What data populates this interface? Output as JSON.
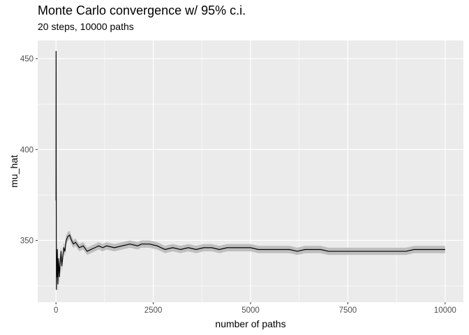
{
  "chart_data": {
    "type": "line",
    "title": "Monte Carlo convergence w/ 95% c.i.",
    "subtitle": "20 steps, 10000 paths",
    "xlabel": "number of paths",
    "ylabel": "mu_hat",
    "xlim": [
      -470,
      10470
    ],
    "ylim": [
      316,
      460
    ],
    "x_ticks": [
      0,
      2500,
      5000,
      7500,
      10000
    ],
    "x_tick_labels": [
      "0",
      "2500",
      "5000",
      "7500",
      "10000"
    ],
    "y_ticks": [
      350,
      400,
      450
    ],
    "y_tick_labels": [
      "350",
      "400",
      "450"
    ],
    "grid": true,
    "colors": {
      "panel": "#ebebeb",
      "grid_major": "#ffffff",
      "line": "#000000",
      "ribbon": "#bebebe"
    },
    "series": [
      {
        "x": [
          1,
          3,
          5,
          8,
          12,
          18,
          25,
          35,
          50,
          70,
          90,
          110,
          130,
          150,
          170,
          200,
          230,
          260,
          300,
          350,
          400,
          450,
          500,
          600,
          700,
          800,
          900,
          1000,
          1100,
          1200,
          1300,
          1500,
          1700,
          1900,
          2100,
          2200,
          2400,
          2600,
          2800,
          3000,
          3200,
          3400,
          3600,
          3800,
          4000,
          4200,
          4400,
          4600,
          4800,
          5000,
          5200,
          5400,
          5600,
          5800,
          6000,
          6200,
          6400,
          6600,
          6800,
          7000,
          7200,
          7400,
          7600,
          7800,
          8000,
          8200,
          8400,
          8600,
          8800,
          9000,
          9200,
          9400,
          9600,
          9800,
          10000
        ],
        "y": [
          372,
          454,
          395,
          350,
          323,
          340,
          330,
          345,
          326,
          340,
          330,
          338,
          344,
          336,
          340,
          346,
          344,
          350,
          352,
          353,
          350,
          348,
          349,
          346,
          347,
          344,
          345,
          346,
          347,
          346,
          347,
          346,
          347,
          348,
          347,
          348,
          348,
          347,
          345,
          346,
          345,
          346,
          345,
          346,
          346,
          345,
          346,
          346,
          346,
          346,
          345,
          345,
          345,
          345,
          345,
          344,
          345,
          345,
          345,
          344,
          344,
          344,
          344,
          344,
          344,
          344,
          344,
          344,
          344,
          344,
          345,
          345,
          345,
          345,
          345
        ],
        "ci_half_width": [
          0,
          0,
          0,
          0,
          0,
          8,
          7,
          6,
          5,
          4.5,
          4,
          3.8,
          3.6,
          3.4,
          3.2,
          3,
          2.8,
          2.7,
          2.5,
          2.4,
          2.3,
          2.2,
          2.1,
          2,
          2,
          2,
          2,
          2,
          2,
          2,
          2,
          2,
          2,
          2,
          2,
          2,
          2,
          2,
          2,
          2,
          2,
          2,
          2,
          2,
          2,
          2,
          2,
          2,
          2,
          2,
          2,
          2,
          2,
          2,
          2,
          2,
          2,
          2,
          2,
          2,
          2,
          2,
          2,
          2,
          2,
          2,
          2,
          2,
          2,
          2,
          2,
          2,
          2,
          2,
          2
        ]
      }
    ]
  }
}
